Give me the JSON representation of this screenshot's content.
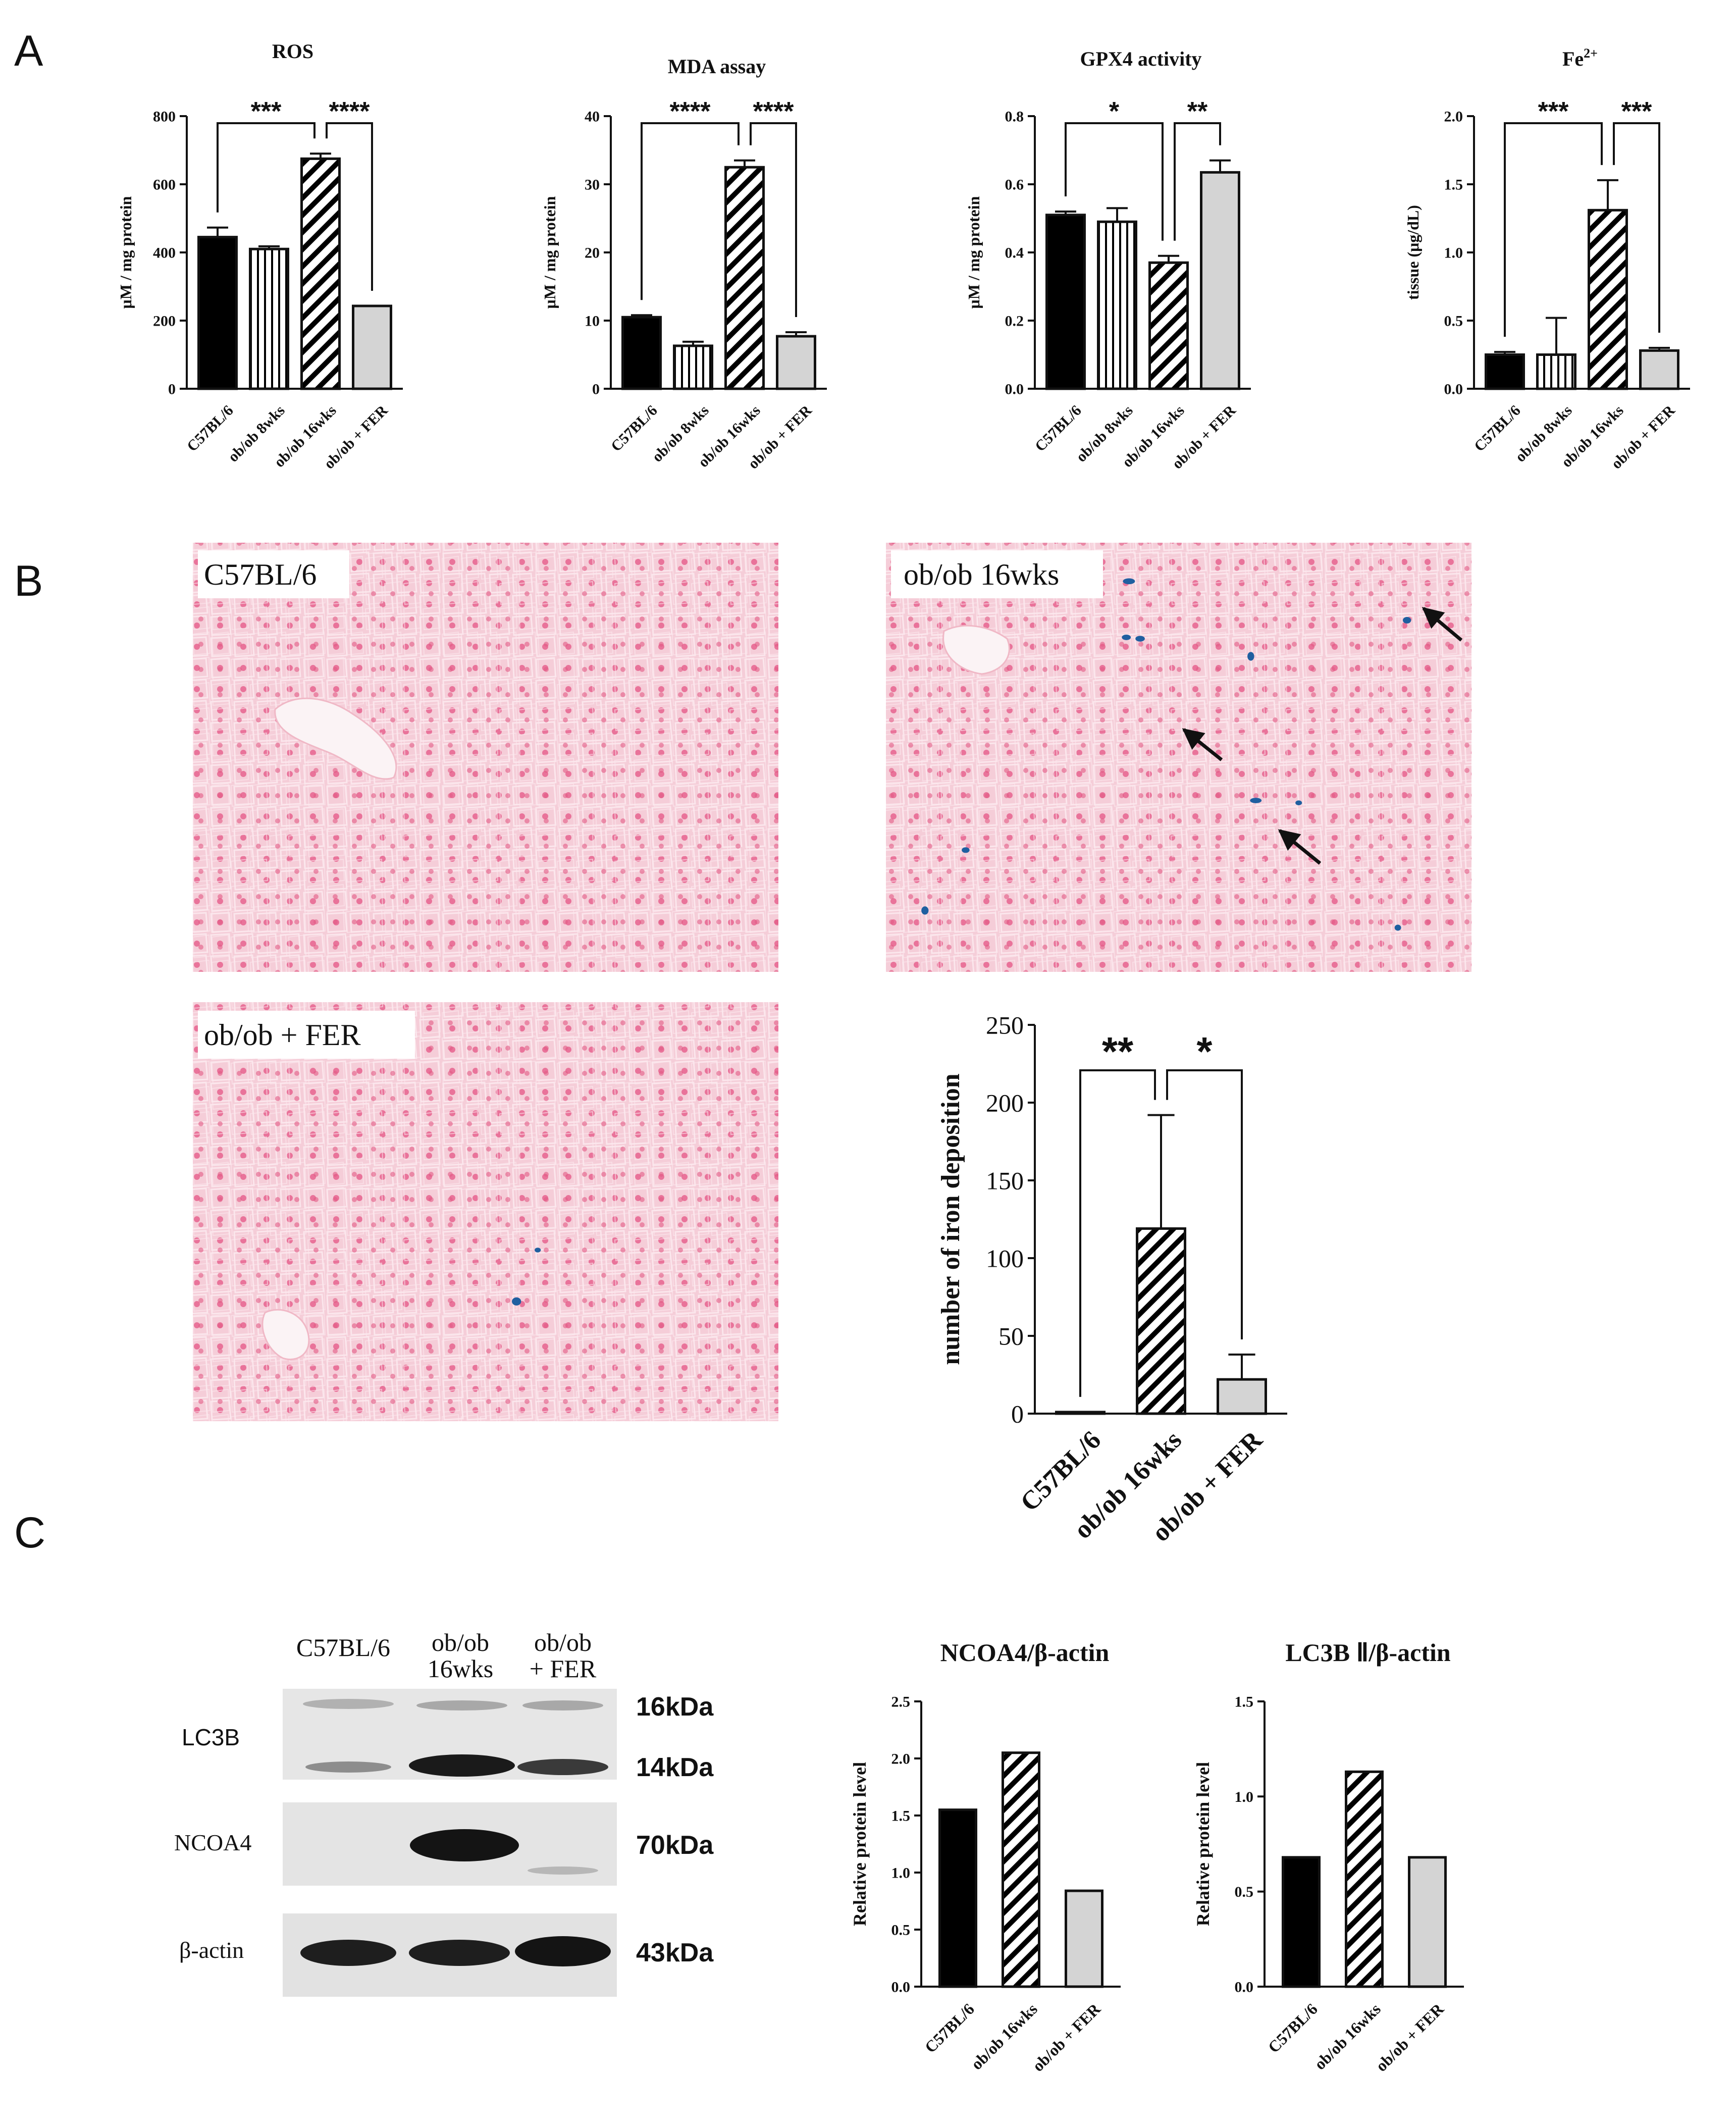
{
  "panels": {
    "a": {
      "label": "A"
    },
    "b": {
      "label": "B"
    },
    "c": {
      "label": "C"
    }
  },
  "colors": {
    "control": "#000000",
    "treated": "#d4d4d4",
    "micro_pink": "#f3c6d1",
    "nucleus": "#e0386b",
    "iron_blue": "#1f5fa0"
  },
  "chart_data": [
    {
      "id": "ros",
      "type": "bar",
      "title": "ROS",
      "ylabel": "μM / mg protein",
      "categories": [
        "C57BL/6",
        "ob/ob 8wks",
        "ob/ob 16wks",
        "ob/ob + FER"
      ],
      "values": [
        445,
        410,
        675,
        243
      ],
      "errors": [
        28,
        8,
        15,
        0
      ],
      "patterns": [
        "solid",
        "vertical",
        "diagonal",
        "gray"
      ],
      "ylim": [
        0,
        800
      ],
      "yticks": [
        "0",
        "200",
        "400",
        "600",
        "800"
      ],
      "significance": [
        {
          "from": 0,
          "to": 2,
          "label": "***"
        },
        {
          "from": 2,
          "to": 3,
          "label": "****"
        }
      ]
    },
    {
      "id": "mda",
      "type": "bar",
      "title": "MDA assay",
      "ylabel": "μM / mg protein",
      "categories": [
        "C57BL/6",
        "ob/ob 8wks",
        "ob/ob 16wks",
        "ob/ob + FER"
      ],
      "values": [
        10.5,
        6.3,
        32.5,
        7.7
      ],
      "errors": [
        0.3,
        0.6,
        1.0,
        0.6
      ],
      "patterns": [
        "solid",
        "vertical",
        "diagonal",
        "gray"
      ],
      "ylim": [
        0,
        40
      ],
      "yticks": [
        "0",
        "10",
        "20",
        "30",
        "40"
      ],
      "significance": [
        {
          "from": 0,
          "to": 2,
          "label": "****"
        },
        {
          "from": 2,
          "to": 3,
          "label": "****"
        }
      ]
    },
    {
      "id": "gpx4",
      "type": "bar",
      "title": "GPX4 activity",
      "ylabel": "μM / mg protein",
      "categories": [
        "C57BL/6",
        "ob/ob 8wks",
        "ob/ob 16wks",
        "ob/ob + FER"
      ],
      "values": [
        0.51,
        0.49,
        0.37,
        0.635
      ],
      "errors": [
        0.01,
        0.04,
        0.02,
        0.035
      ],
      "patterns": [
        "solid",
        "vertical",
        "diagonal",
        "gray"
      ],
      "ylim": [
        0,
        0.8
      ],
      "yticks": [
        "0.0",
        "0.2",
        "0.4",
        "0.6",
        "0.8"
      ],
      "significance": [
        {
          "from": 0,
          "to": 2,
          "label": "*"
        },
        {
          "from": 2,
          "to": 3,
          "label": "**"
        }
      ]
    },
    {
      "id": "fe",
      "type": "bar",
      "title": "Fe",
      "title_sup": "2+",
      "ylabel": "tissue (μg/dL)",
      "categories": [
        "C57BL/6",
        "ob/ob 8wks",
        "ob/ob 16wks",
        "ob/ob + FER"
      ],
      "values": [
        0.25,
        0.25,
        1.31,
        0.28
      ],
      "errors": [
        0.02,
        0.27,
        0.22,
        0.02
      ],
      "patterns": [
        "solid",
        "vertical",
        "diagonal",
        "gray"
      ],
      "ylim": [
        0,
        2.0
      ],
      "yticks": [
        "0.0",
        "0.5",
        "1.0",
        "1.5",
        "2.0"
      ],
      "significance": [
        {
          "from": 0,
          "to": 2,
          "label": "***"
        },
        {
          "from": 2,
          "to": 3,
          "label": "***"
        }
      ]
    },
    {
      "id": "iron",
      "type": "bar",
      "title": "",
      "ylabel": "number of iron deposition",
      "categories": [
        "C57BL/6",
        "ob/ob 16wks",
        "ob/ob + FER"
      ],
      "values": [
        1,
        119,
        22
      ],
      "errors": [
        0,
        73,
        16
      ],
      "patterns": [
        "solid",
        "diagonal",
        "gray"
      ],
      "ylim": [
        0,
        250
      ],
      "yticks": [
        "0",
        "50",
        "100",
        "150",
        "200",
        "250"
      ],
      "significance": [
        {
          "from": 0,
          "to": 1,
          "label": "**"
        },
        {
          "from": 1,
          "to": 2,
          "label": "*"
        }
      ]
    },
    {
      "id": "ncoa4",
      "type": "bar",
      "title": "NCOA4/β-actin",
      "ylabel": "Relative protein level",
      "categories": [
        "C57BL/6",
        "ob/ob 16wks",
        "ob/ob + FER"
      ],
      "values": [
        1.55,
        2.05,
        0.84
      ],
      "errors": [
        0,
        0,
        0
      ],
      "patterns": [
        "solid",
        "diagonal",
        "gray"
      ],
      "ylim": [
        0,
        2.5
      ],
      "yticks": [
        "0.0",
        "0.5",
        "1.0",
        "1.5",
        "2.0",
        "2.5"
      ],
      "significance": []
    },
    {
      "id": "lc3b",
      "type": "bar",
      "title": "LC3B Ⅱ/β-actin",
      "ylabel": "Relative protein level",
      "categories": [
        "C57BL/6",
        "ob/ob 16wks",
        "ob/ob + FER"
      ],
      "values": [
        0.68,
        1.13,
        0.68
      ],
      "errors": [
        0,
        0,
        0
      ],
      "patterns": [
        "solid",
        "diagonal",
        "gray"
      ],
      "ylim": [
        0,
        1.5
      ],
      "yticks": [
        "0.0",
        "0.5",
        "1.0",
        "1.5"
      ],
      "significance": []
    }
  ],
  "micrographs": [
    {
      "id": "c57",
      "label": "C57BL/6",
      "iron_spots": 0
    },
    {
      "id": "ob16",
      "label": "ob/ob 16wks",
      "iron_spots": 10
    },
    {
      "id": "fer",
      "label": "ob/ob + FER",
      "iron_spots": 2
    }
  ],
  "western_blot": {
    "lanes": [
      "C57BL/6",
      "ob/ob\n16wks",
      "ob/ob\n+ FER"
    ],
    "rows": [
      {
        "name": "LC3B",
        "markers": [
          "16kDa",
          "14kDa"
        ]
      },
      {
        "name": "NCOA4",
        "markers": [
          "70kDa"
        ]
      },
      {
        "name": "β-actin",
        "markers": [
          "43kDa"
        ]
      }
    ]
  }
}
